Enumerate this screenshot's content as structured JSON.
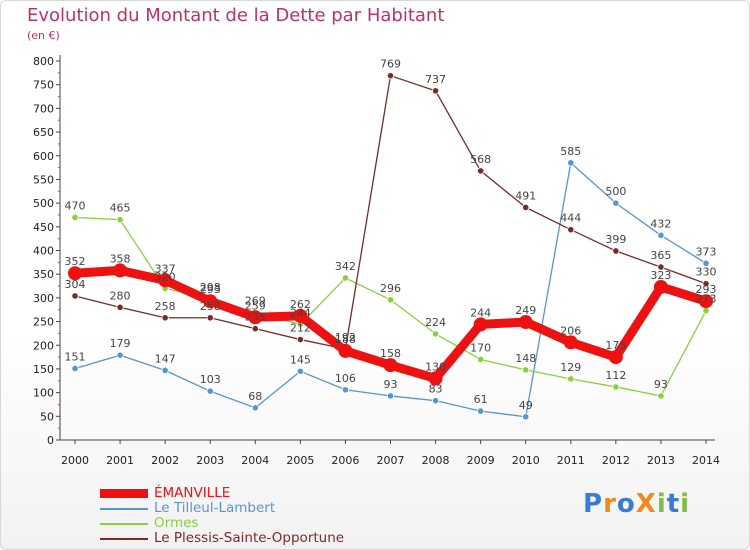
{
  "chart_data": {
    "type": "line",
    "title": "Evolution du Montant de la Dette par Habitant",
    "ylabel": "(en €)",
    "xlabel": "",
    "x": [
      "2000",
      "2001",
      "2002",
      "2003",
      "2004",
      "2005",
      "2006",
      "2007",
      "2008",
      "2009",
      "2010",
      "2011",
      "2012",
      "2013",
      "2014"
    ],
    "ylim": [
      0,
      800
    ],
    "yticks": [
      0,
      50,
      100,
      150,
      200,
      250,
      300,
      350,
      400,
      450,
      500,
      550,
      600,
      650,
      700,
      750,
      800
    ],
    "grid": false,
    "legend_position": "bottom-left",
    "series": [
      {
        "name": "ÉMANVILLE",
        "color": "#ee1111",
        "values": [
          352,
          358,
          337,
          293,
          259,
          262,
          188,
          158,
          130,
          244,
          249,
          206,
          175,
          323,
          293
        ]
      },
      {
        "name": "Le Tilleul-Lambert",
        "color": "#5595d5",
        "values": [
          151,
          179,
          147,
          103,
          68,
          145,
          106,
          93,
          83,
          61,
          49,
          585,
          500,
          432,
          373
        ]
      },
      {
        "name": "Ormes",
        "color": "#88d040",
        "values": [
          470,
          465,
          320,
          298,
          269,
          244,
          342,
          296,
          224,
          170,
          148,
          129,
          112,
          93,
          273
        ]
      },
      {
        "name": "Le Plessis-Sainte-Opportune",
        "color": "#7a2a2a",
        "values": [
          304,
          280,
          258,
          258,
          235,
          212,
          192,
          769,
          737,
          568,
          491,
          444,
          399,
          365,
          330
        ]
      }
    ]
  },
  "logo": {
    "text": "ProXiti",
    "letters": [
      "P",
      "r",
      "o",
      "X",
      "i",
      "t",
      "i"
    ],
    "colors": [
      "#3a7bd5",
      "#f08a1e",
      "#3a7bd5",
      "#f08a1e",
      "#7bc043",
      "#3a7bd5",
      "#7bc043"
    ]
  }
}
